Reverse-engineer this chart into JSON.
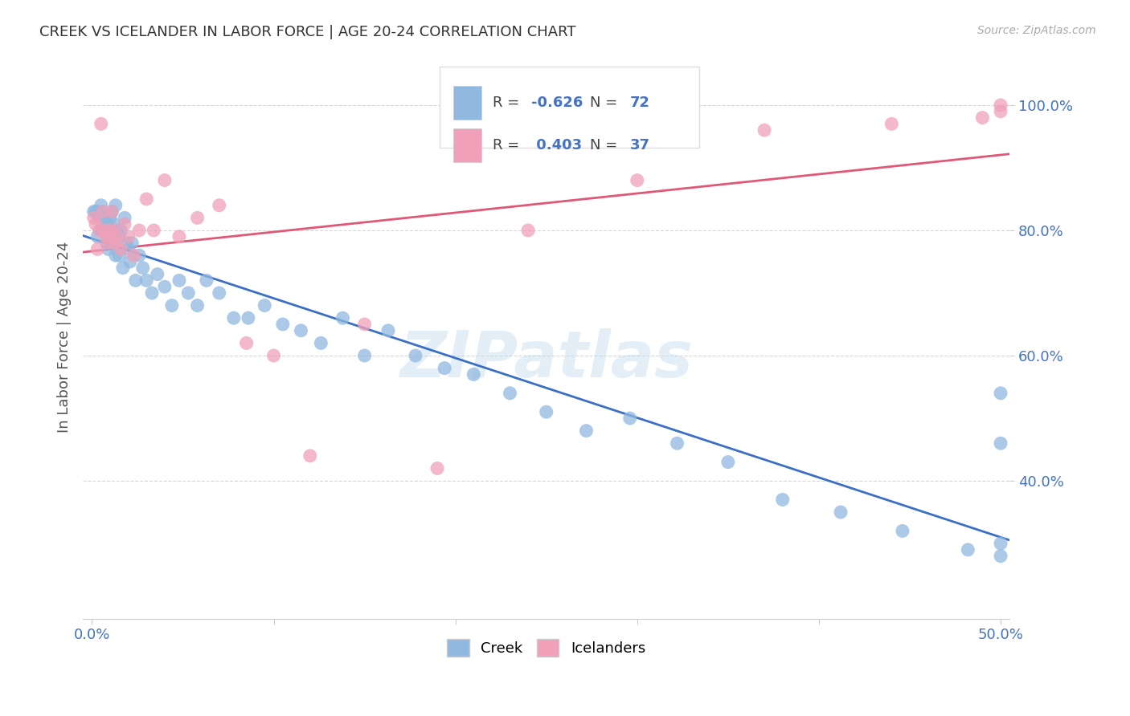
{
  "title": "CREEK VS ICELANDER IN LABOR FORCE | AGE 20-24 CORRELATION CHART",
  "source": "Source: ZipAtlas.com",
  "ylabel": "In Labor Force | Age 20-24",
  "xlim": [
    -0.005,
    0.505
  ],
  "ylim": [
    0.18,
    1.08
  ],
  "xtick_vals": [
    0.0,
    0.1,
    0.2,
    0.3,
    0.4,
    0.5
  ],
  "ytick_vals": [
    0.4,
    0.6,
    0.8,
    1.0
  ],
  "creek_color": "#90b8e0",
  "icelander_color": "#f0a0b8",
  "creek_line_color": "#3a6fc4",
  "icelander_line_color": "#e05878",
  "watermark": "ZIPatlas",
  "legend_creek_R": "-0.626",
  "legend_creek_N": "72",
  "legend_icelander_R": "0.403",
  "legend_icelander_N": "37",
  "creek_x": [
    0.001,
    0.002,
    0.003,
    0.003,
    0.004,
    0.005,
    0.005,
    0.006,
    0.006,
    0.007,
    0.007,
    0.008,
    0.008,
    0.009,
    0.009,
    0.01,
    0.01,
    0.011,
    0.011,
    0.012,
    0.012,
    0.013,
    0.013,
    0.014,
    0.015,
    0.015,
    0.016,
    0.017,
    0.018,
    0.019,
    0.02,
    0.021,
    0.022,
    0.024,
    0.026,
    0.028,
    0.03,
    0.033,
    0.036,
    0.04,
    0.044,
    0.048,
    0.053,
    0.058,
    0.063,
    0.07,
    0.078,
    0.086,
    0.095,
    0.105,
    0.115,
    0.126,
    0.138,
    0.15,
    0.163,
    0.178,
    0.194,
    0.21,
    0.23,
    0.25,
    0.272,
    0.296,
    0.322,
    0.35,
    0.38,
    0.412,
    0.446,
    0.482,
    0.5,
    0.5,
    0.5,
    0.5
  ],
  "creek_y": [
    0.83,
    0.83,
    0.83,
    0.79,
    0.82,
    0.84,
    0.8,
    0.8,
    0.83,
    0.8,
    0.82,
    0.81,
    0.78,
    0.8,
    0.77,
    0.82,
    0.79,
    0.8,
    0.83,
    0.78,
    0.81,
    0.76,
    0.84,
    0.8,
    0.79,
    0.76,
    0.8,
    0.74,
    0.82,
    0.78,
    0.77,
    0.75,
    0.78,
    0.72,
    0.76,
    0.74,
    0.72,
    0.7,
    0.73,
    0.71,
    0.68,
    0.72,
    0.7,
    0.68,
    0.72,
    0.7,
    0.66,
    0.66,
    0.68,
    0.65,
    0.64,
    0.62,
    0.66,
    0.6,
    0.64,
    0.6,
    0.58,
    0.57,
    0.54,
    0.51,
    0.48,
    0.5,
    0.46,
    0.43,
    0.37,
    0.35,
    0.32,
    0.29,
    0.46,
    0.54,
    0.3,
    0.28
  ],
  "icelander_x": [
    0.001,
    0.002,
    0.003,
    0.004,
    0.005,
    0.006,
    0.007,
    0.008,
    0.009,
    0.01,
    0.011,
    0.012,
    0.013,
    0.014,
    0.016,
    0.018,
    0.02,
    0.023,
    0.026,
    0.03,
    0.034,
    0.04,
    0.048,
    0.058,
    0.07,
    0.085,
    0.1,
    0.12,
    0.15,
    0.19,
    0.24,
    0.3,
    0.37,
    0.44,
    0.49,
    0.5,
    0.5
  ],
  "icelander_y": [
    0.82,
    0.81,
    0.77,
    0.8,
    0.97,
    0.83,
    0.8,
    0.79,
    0.78,
    0.8,
    0.83,
    0.8,
    0.78,
    0.79,
    0.77,
    0.81,
    0.79,
    0.76,
    0.8,
    0.85,
    0.8,
    0.88,
    0.79,
    0.82,
    0.84,
    0.62,
    0.6,
    0.44,
    0.65,
    0.42,
    0.8,
    0.88,
    0.96,
    0.97,
    0.98,
    0.99,
    1.0
  ]
}
